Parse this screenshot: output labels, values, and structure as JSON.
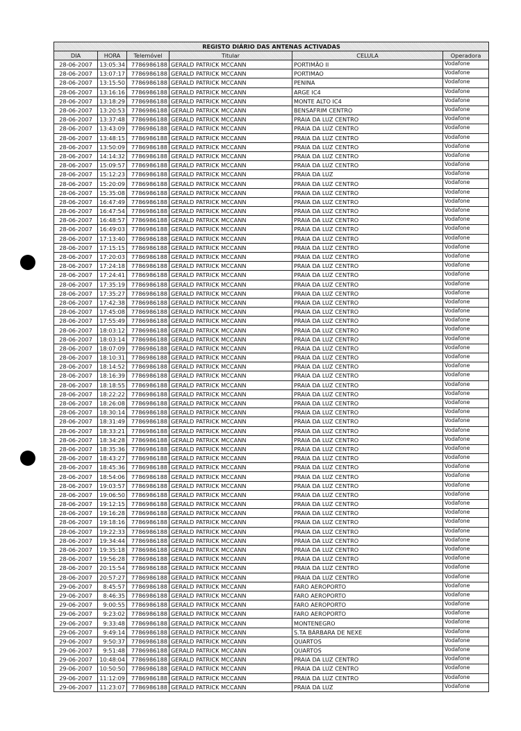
{
  "title": "REGISTO DIÁRIO DAS ANTENAS ACTIVADAS",
  "columns": [
    "DIA",
    "HORA",
    "Telemóvel",
    "Titular",
    "CELULA",
    "Operadora"
  ],
  "rows": [
    [
      "28-06-2007",
      "13:05:34",
      "7786986188",
      "GERALD PATRICK MCCANN",
      "PORTIMÃO II",
      "Vodafone"
    ],
    [
      "28-06-2007",
      "13:07:17",
      "7786986188",
      "GERALD PATRICK MCCANN",
      "PORTIMAO",
      "Vodafone"
    ],
    [
      "28-06-2007",
      "13:15:50",
      "7786986188",
      "GERALD PATRICK MCCANN",
      "PENINA",
      "Vodafone"
    ],
    [
      "28-06-2007",
      "13:16:16",
      "7786986188",
      "GERALD PATRICK MCCANN",
      "ARGE IC4",
      "Vodafone"
    ],
    [
      "28-06-2007",
      "13:18:29",
      "7786986188",
      "GERALD PATRICK MCCANN",
      "MONTE ALTO IC4",
      "Vodafone"
    ],
    [
      "28-06-2007",
      "13:20:53",
      "7786986188",
      "GERALD PATRICK MCCANN",
      "BENSAFRIM CENTRO",
      "Vodafone"
    ],
    [
      "28-06-2007",
      "13:37:48",
      "7786986188",
      "GERALD PATRICK MCCANN",
      "PRAIA DA LUZ CENTRO",
      "Vodafone"
    ],
    [
      "28-06-2007",
      "13:43:09",
      "7786986188",
      "GERALD PATRICK MCCANN",
      "PRAIA DA LUZ CENTRO",
      "Vodafone"
    ],
    [
      "28-06-2007",
      "13:48:15",
      "7786986188",
      "GERALD PATRICK MCCANN",
      "PRAIA DA LUZ CENTRO",
      "Vodafone"
    ],
    [
      "28-06-2007",
      "13:50:09",
      "7786986188",
      "GERALD PATRICK MCCANN",
      "PRAIA DA LUZ CENTRO",
      "Vodafone"
    ],
    [
      "28-06-2007",
      "14:14:32",
      "7786986188",
      "GERALD PATRICK MCCANN",
      "PRAIA DA LUZ CENTRO",
      "Vodafone"
    ],
    [
      "28-06-2007",
      "15:09:57",
      "7786986188",
      "GERALD PATRICK MCCANN",
      "PRAIA DA LUZ CENTRO",
      "Vodafone"
    ],
    [
      "28-06-2007",
      "15:12:23",
      "7786986188",
      "GERALD PATRICK MCCANN",
      "PRAIA DA LUZ",
      "Vodafone"
    ],
    [
      "28-06-2007",
      "15:20:09",
      "7786986188",
      "GERALD PATRICK MCCANN",
      "PRAIA DA LUZ CENTRO",
      "Vodafone"
    ],
    [
      "28-06-2007",
      "15:35:08",
      "7786986188",
      "GERALD PATRICK MCCANN",
      "PRAIA DA LUZ CENTRO",
      "Vodafone"
    ],
    [
      "28-06-2007",
      "16:47:49",
      "7786986188",
      "GERALD PATRICK MCCANN",
      "PRAIA DA LUZ CENTRO",
      "Vodafone"
    ],
    [
      "28-06-2007",
      "16:47:54",
      "7786986188",
      "GERALD PATRICK MCCANN",
      "PRAIA DA LUZ CENTRO",
      "Vodafone"
    ],
    [
      "28-06-2007",
      "16:48:57",
      "7786986188",
      "GERALD PATRICK MCCANN",
      "PRAIA DA LUZ CENTRO",
      "Vodafone"
    ],
    [
      "28-06-2007",
      "16:49:03",
      "7786986188",
      "GERALD PATRICK MCCANN",
      "PRAIA DA LUZ CENTRO",
      "Vodafone"
    ],
    [
      "28-06-2007",
      "17:13:40",
      "7786986188",
      "GERALD PATRICK MCCANN",
      "PRAIA DA LUZ CENTRO",
      "Vodafone"
    ],
    [
      "28-06-2007",
      "17:15:15",
      "7786986188",
      "GERALD PATRICK MCCANN",
      "PRAIA DA LUZ CENTRO",
      "Vodafone"
    ],
    [
      "28-06-2007",
      "17:20:03",
      "7786986188",
      "GERALD PATRICK MCCANN",
      "PRAIA DA LUZ CENTRO",
      "Vodafone"
    ],
    [
      "28-06-2007",
      "17:24:18",
      "7786986188",
      "GERALD PATRICK MCCANN",
      "PRAIA DA LUZ CENTRO",
      "Vodafone"
    ],
    [
      "28-06-2007",
      "17:24:41",
      "7786986188",
      "GERALD PATRICK MCCANN",
      "PRAIA DA LUZ CENTRO",
      "Vodafone"
    ],
    [
      "28-06-2007",
      "17:35:19",
      "7786986188",
      "GERALD PATRICK MCCANN",
      "PRAIA DA LUZ CENTRO",
      "Vodafone"
    ],
    [
      "28-06-2007",
      "17:35:27",
      "7786986188",
      "GERALD PATRICK MCCANN",
      "PRAIA DA LUZ CENTRO",
      "Vodafone"
    ],
    [
      "28-06-2007",
      "17:42:38",
      "7786986188",
      "GERALD PATRICK MCCANN",
      "PRAIA DA LUZ CENTRO",
      "Vodafone"
    ],
    [
      "28-06-2007",
      "17:45:08",
      "7786986188",
      "GERALD PATRICK MCCANN",
      "PRAIA DA LUZ CENTRO",
      "Vodafone"
    ],
    [
      "28-06-2007",
      "17:55:49",
      "7786986188",
      "GERALD PATRICK MCCANN",
      "PRAIA DA LUZ CENTRO",
      "Vodafone"
    ],
    [
      "28-06-2007",
      "18:03:12",
      "7786986188",
      "GERALD PATRICK MCCANN",
      "PRAIA DA LUZ CENTRO",
      "Vodafone"
    ],
    [
      "28-06-2007",
      "18:03:14",
      "7786986188",
      "GERALD PATRICK MCCANN",
      "PRAIA DA LUZ CENTRO",
      "Vodafone"
    ],
    [
      "28-06-2007",
      "18:07:09",
      "7786986188",
      "GERALD PATRICK MCCANN",
      "PRAIA DA LUZ CENTRO",
      "Vodafone"
    ],
    [
      "28-06-2007",
      "18:10:31",
      "7786986188",
      "GERALD PATRICK MCCANN",
      "PRAIA DA LUZ CENTRO",
      "Vodafone"
    ],
    [
      "28-06-2007",
      "18:14:52",
      "7786986188",
      "GERALD PATRICK MCCANN",
      "PRAIA DA LUZ CENTRO",
      "Vodafone"
    ],
    [
      "28-06-2007",
      "18:16:39",
      "7786986188",
      "GERALD PATRICK MCCANN",
      "PRAIA DA LUZ CENTRO",
      "Vodafone"
    ],
    [
      "28-06-2007",
      "18:18:55",
      "7786986188",
      "GERALD PATRICK MCCANN",
      "PRAIA DA LUZ CENTRO",
      "Vodafone"
    ],
    [
      "28-06-2007",
      "18:22:22",
      "7786986188",
      "GERALD PATRICK MCCANN",
      "PRAIA DA LUZ CENTRO",
      "Vodafone"
    ],
    [
      "28-06-2007",
      "18:26:08",
      "7786986188",
      "GERALD PATRICK MCCANN",
      "PRAIA DA LUZ CENTRO",
      "Vodafone"
    ],
    [
      "28-06-2007",
      "18:30:14",
      "7786986188",
      "GERALD PATRICK MCCANN",
      "PRAIA DA LUZ CENTRO",
      "Vodafone"
    ],
    [
      "28-06-2007",
      "18:31:49",
      "7786986188",
      "GERALD PATRICK MCCANN",
      "PRAIA DA LUZ CENTRO",
      "Vodafone"
    ],
    [
      "28-06-2007",
      "18:33:21",
      "7786986188",
      "GERALD PATRICK MCCANN",
      "PRAIA DA LUZ CENTRO",
      "Vodafone"
    ],
    [
      "28-06-2007",
      "18:34:28",
      "7786986188",
      "GERALD PATRICK MCCANN",
      "PRAIA DA LUZ CENTRO",
      "Vodafone"
    ],
    [
      "28-06-2007",
      "18:35:36",
      "7786986188",
      "GERALD PATRICK MCCANN",
      "PRAIA DA LUZ CENTRO",
      "Vodafone"
    ],
    [
      "28-06-2007",
      "18:43:27",
      "7786986188",
      "GERALD PATRICK MCCANN",
      "PRAIA DA LUZ CENTRO",
      "Vodafone"
    ],
    [
      "28-06-2007",
      "18:45:36",
      "7786986188",
      "GERALD PATRICK MCCANN",
      "PRAIA DA LUZ CENTRO",
      "Vodafone"
    ],
    [
      "28-06-2007",
      "18:54:06",
      "7786986188",
      "GERALD PATRICK MCCANN",
      "PRAIA DA LUZ CENTRO",
      "Vodafone"
    ],
    [
      "28-06-2007",
      "19:03:57",
      "7786986188",
      "GERALD PATRICK MCCANN",
      "PRAIA DA LUZ CENTRO",
      "Vodafone"
    ],
    [
      "28-06-2007",
      "19:06:50",
      "7786986188",
      "GERALD PATRICK MCCANN",
      "PRAIA DA LUZ CENTRO",
      "Vodafone"
    ],
    [
      "28-06-2007",
      "19:12:15",
      "7786986188",
      "GERALD PATRICK MCCANN",
      "PRAIA DA LUZ CENTRO",
      "Vodafone"
    ],
    [
      "28-06-2007",
      "19:16:28",
      "7786986188",
      "GERALD PATRICK MCCANN",
      "PRAIA DA LUZ CENTRO",
      "Vodafone"
    ],
    [
      "28-06-2007",
      "19:18:16",
      "7786986188",
      "GERALD PATRICK MCCANN",
      "PRAIA DA LUZ CENTRO",
      "Vodafone"
    ],
    [
      "28-06-2007",
      "19:22:33",
      "7786986188",
      "GERALD PATRICK MCCANN",
      "PRAIA DA LUZ CENTRO",
      "Vodafone"
    ],
    [
      "28-06-2007",
      "19:34:44",
      "7786986188",
      "GERALD PATRICK MCCANN",
      "PRAIA DA LUZ CENTRO",
      "Vodafone"
    ],
    [
      "28-06-2007",
      "19:35:18",
      "7786986188",
      "GERALD PATRICK MCCANN",
      "PRAIA DA LUZ CENTRO",
      "Vodafone"
    ],
    [
      "28-06-2007",
      "19:56:28",
      "7786986188",
      "GERALD PATRICK MCCANN",
      "PRAIA DA LUZ CENTRO",
      "Vodafone"
    ],
    [
      "28-06-2007",
      "20:15:54",
      "7786986188",
      "GERALD PATRICK MCCANN",
      "PRAIA DA LUZ CENTRO",
      "Vodafone"
    ],
    [
      "28-06-2007",
      "20:57:27",
      "7786986188",
      "GERALD PATRICK MCCANN",
      "PRAIA DA LUZ CENTRO",
      "Vodafone"
    ],
    [
      "29-06-2007",
      "8:45:57",
      "7786986188",
      "GERALD PATRICK MCCANN",
      "FARO AEROPORTO",
      "Vodafone"
    ],
    [
      "29-06-2007",
      "8:46:35",
      "7786986188",
      "GERALD PATRICK MCCANN",
      "FARO AEROPORTO",
      "Vodafone"
    ],
    [
      "29-06-2007",
      "9:00:55",
      "7786986188",
      "GERALD PATRICK MCCANN",
      "FARO AEROPORTO",
      "Vodafone"
    ],
    [
      "29-06-2007",
      "9:23:02",
      "7786986188",
      "GERALD PATRICK MCCANN",
      "FARO AEROPORTO",
      "Vodafone"
    ],
    [
      "29-06-2007",
      "9:33:48",
      "7786986188",
      "GERALD PATRICK MCCANN",
      "MONTENEGRO",
      "Vodafone"
    ],
    [
      "29-06-2007",
      "9:49:14",
      "7786986188",
      "GERALD PATRICK MCCANN",
      "S.TA BÁRBARA DE NEXE",
      "Vodafone"
    ],
    [
      "29-06-2007",
      "9:50:37",
      "7786986188",
      "GERALD PATRICK MCCANN",
      "QUARTOS",
      "Vodafone"
    ],
    [
      "29-06-2007",
      "9:51:48",
      "7786986188",
      "GERALD PATRICK MCCANN",
      "QUARTOS",
      "Vodafone"
    ],
    [
      "29-06-2007",
      "10:48:04",
      "7786986188",
      "GERALD PATRICK MCCANN",
      "PRAIA DA LUZ CENTRO",
      "Vodafone"
    ],
    [
      "29-06-2007",
      "10:50:50",
      "7786986188",
      "GERALD PATRICK MCCANN",
      "PRAIA DA LUZ CENTRO",
      "Vodafone"
    ],
    [
      "29-06-2007",
      "11:12:09",
      "7786986188",
      "GERALD PATRICK MCCANN",
      "PRAIA DA LUZ CENTRO",
      "Vodafone"
    ],
    [
      "29-06-2007",
      "11:23:07",
      "7786986188",
      "GERALD PATRICK MCCANN",
      "PRAIA DA LUZ",
      "Vodafone"
    ]
  ]
}
